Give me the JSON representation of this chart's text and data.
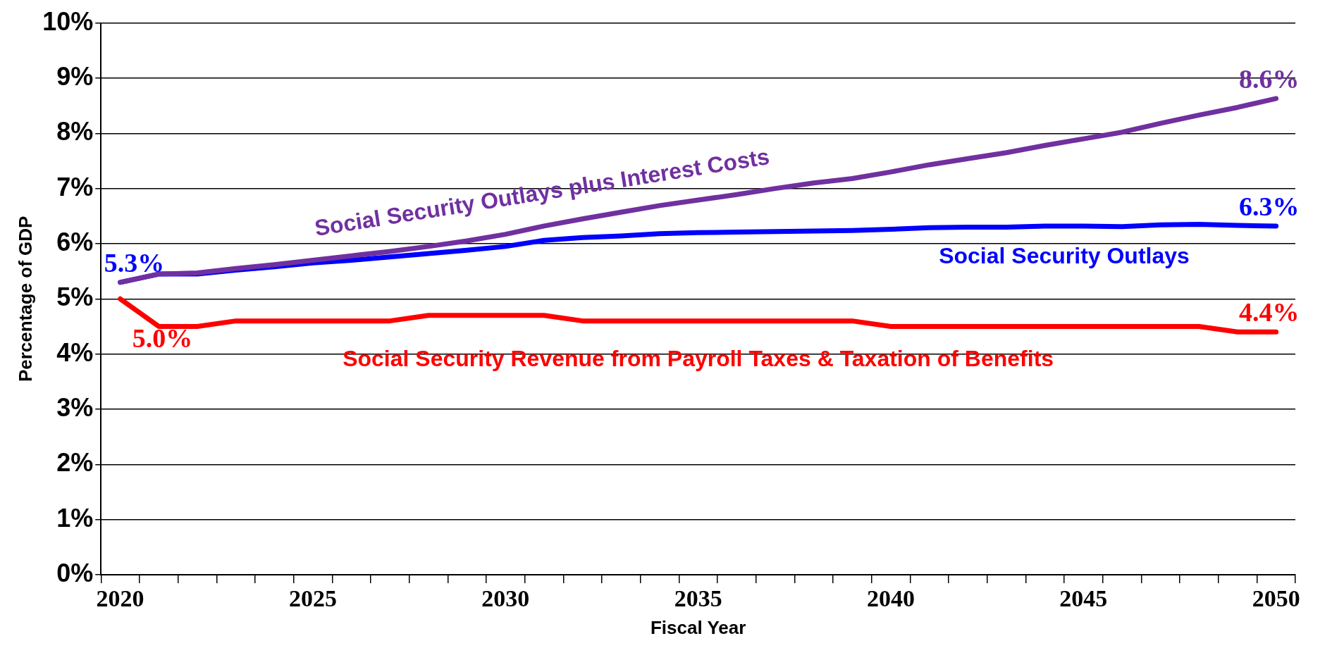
{
  "chart_data": {
    "type": "line",
    "xlabel": "Fiscal Year",
    "ylabel": "Percentage of GDP",
    "categories": [
      "2020",
      null,
      null,
      null,
      null,
      "2025",
      null,
      null,
      null,
      null,
      "2030",
      null,
      null,
      null,
      null,
      "2035",
      null,
      null,
      null,
      null,
      "2040",
      null,
      null,
      null,
      null,
      "2045",
      null,
      null,
      null,
      null,
      "2050"
    ],
    "series": [
      {
        "name": "Social Security Outlays plus Interest Costs",
        "color": "#7030a0",
        "values": [
          5.3,
          5.45,
          5.47,
          5.55,
          5.62,
          5.7,
          5.78,
          5.86,
          5.95,
          6.05,
          6.17,
          6.32,
          6.45,
          6.57,
          6.69,
          6.79,
          6.89,
          7.0,
          7.1,
          7.18,
          7.3,
          7.43,
          7.54,
          7.65,
          7.78,
          7.9,
          8.02,
          8.18,
          8.33,
          8.47,
          8.63
        ],
        "value_labels": [
          null,
          null,
          null,
          null,
          null,
          null,
          null,
          null,
          null,
          null,
          null,
          null,
          null,
          null,
          null,
          null,
          null,
          null,
          null,
          null,
          null,
          null,
          null,
          null,
          null,
          null,
          null,
          null,
          null,
          null,
          "8.6%"
        ]
      },
      {
        "name": "Social Security Outlays",
        "color": "#0000ff",
        "values": [
          5.3,
          5.45,
          5.45,
          5.52,
          5.58,
          5.65,
          5.7,
          5.76,
          5.82,
          5.88,
          5.95,
          6.06,
          6.11,
          6.14,
          6.18,
          6.2,
          6.21,
          6.22,
          6.23,
          6.24,
          6.26,
          6.29,
          6.3,
          6.3,
          6.32,
          6.32,
          6.31,
          6.34,
          6.35,
          6.33,
          6.32
        ],
        "value_labels": [
          "5.3%",
          null,
          null,
          null,
          null,
          null,
          null,
          null,
          null,
          null,
          null,
          null,
          null,
          null,
          null,
          null,
          null,
          null,
          null,
          null,
          null,
          null,
          null,
          null,
          null,
          null,
          null,
          null,
          null,
          null,
          "6.3%"
        ]
      },
      {
        "name": "Social Security Revenue from Payroll Taxes & Taxation of Benefits",
        "color": "#ff0000",
        "values": [
          5.0,
          4.5,
          4.5,
          4.6,
          4.6,
          4.6,
          4.6,
          4.6,
          4.7,
          4.7,
          4.7,
          4.7,
          4.6,
          4.6,
          4.6,
          4.6,
          4.6,
          4.6,
          4.6,
          4.6,
          4.5,
          4.5,
          4.5,
          4.5,
          4.5,
          4.5,
          4.5,
          4.5,
          4.5,
          4.4,
          4.4
        ],
        "value_labels": [
          "5.0%",
          null,
          null,
          null,
          null,
          null,
          null,
          null,
          null,
          null,
          null,
          null,
          null,
          null,
          null,
          null,
          null,
          null,
          null,
          null,
          null,
          null,
          null,
          null,
          null,
          null,
          null,
          null,
          null,
          null,
          "4.4%"
        ]
      }
    ],
    "ylim": [
      0,
      10
    ],
    "yticks": [
      {
        "value": 0,
        "label": "0%"
      },
      {
        "value": 1,
        "label": "1%"
      },
      {
        "value": 2,
        "label": "2%"
      },
      {
        "value": 3,
        "label": "3%"
      },
      {
        "value": 4,
        "label": "4%"
      },
      {
        "value": 5,
        "label": "5%"
      },
      {
        "value": 6,
        "label": "6%"
      },
      {
        "value": 7,
        "label": "7%"
      },
      {
        "value": 8,
        "label": "8%"
      },
      {
        "value": 9,
        "label": "9%"
      },
      {
        "value": 10,
        "label": "10%"
      }
    ],
    "grid": "y",
    "legend": false,
    "marker": "none",
    "line_style": "solid"
  }
}
